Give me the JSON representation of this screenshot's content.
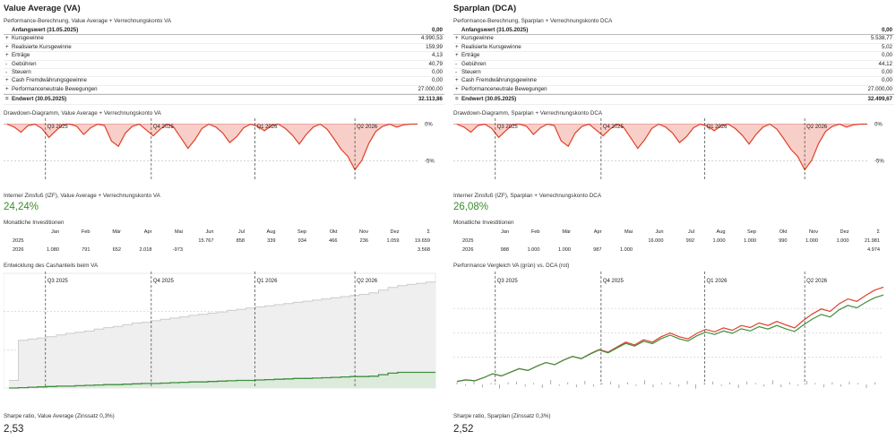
{
  "va": {
    "title": "Value Average (VA)",
    "perf_title": "Performance-Berechnung, Value Average + Verrechnungskonto VA",
    "start_label": "Anfangswert (31.05.2025)",
    "start_value": "0,00",
    "rows": [
      {
        "sign": "+",
        "label": "Kursgewinne",
        "value": "4.990,53"
      },
      {
        "sign": "+",
        "label": "Realisierte Kursgewinne",
        "value": "159,99"
      },
      {
        "sign": "+",
        "label": "Erträge",
        "value": "4,13"
      },
      {
        "sign": "-",
        "label": "Gebühren",
        "value": "40,79"
      },
      {
        "sign": "-",
        "label": "Steuern",
        "value": "0,00"
      },
      {
        "sign": "+",
        "label": "Cash Fremdwährungsgewinne",
        "value": "0,00"
      },
      {
        "sign": "+",
        "label": "Performanceneutrale Bewegungen",
        "value": "27.000,00"
      }
    ],
    "end_label": "Endwert (30.05.2025)",
    "end_value": "32.113,86",
    "drawdown_title": "Drawdown-Diagramm, Value Average + Verrechnungskonto VA",
    "irr_title": "Interner Zinsfuß (IZF), Value Average + Verrechnungskonto VA",
    "irr_value": "24,24%",
    "monthly_title": "Monatliche Investitionen",
    "months": [
      "Jan",
      "Feb",
      "Mär",
      "Apr",
      "Mai",
      "Jun",
      "Jul",
      "Aug",
      "Sep",
      "Okt",
      "Nov",
      "Dez",
      "Σ"
    ],
    "years": [
      {
        "year": "2025",
        "values": [
          "",
          "",
          "",
          "",
          "",
          "15.767",
          "858",
          "339",
          "934",
          "466",
          "236",
          "1.059",
          "19.659"
        ]
      },
      {
        "year": "2026",
        "values": [
          "1.080",
          "791",
          "652",
          "2.018",
          "-973",
          "",
          "",
          "",
          "",
          "",
          "",
          "",
          "3.568"
        ]
      }
    ],
    "chart3_title": "Entwicklung des Cashanteils beim VA",
    "sharpe_title": "Sharpe ratio, Value Average (Zinssatz 0,3%)",
    "sharpe_value": "2,53"
  },
  "dca": {
    "title": "Sparplan (DCA)",
    "perf_title": "Performance-Berechnung, Sparplan + Verrechnungskonto DCA",
    "start_label": "Anfangswert (31.05.2025)",
    "start_value": "0,00",
    "rows": [
      {
        "sign": "+",
        "label": "Kursgewinne",
        "value": "5.538,77"
      },
      {
        "sign": "+",
        "label": "Realisierte Kursgewinne",
        "value": "5,02"
      },
      {
        "sign": "+",
        "label": "Erträge",
        "value": "0,00"
      },
      {
        "sign": "-",
        "label": "Gebühren",
        "value": "44,12"
      },
      {
        "sign": "-",
        "label": "Steuern",
        "value": "0,00"
      },
      {
        "sign": "+",
        "label": "Cash Fremdwährungsgewinne",
        "value": "0,00"
      },
      {
        "sign": "+",
        "label": "Performanceneutrale Bewegungen",
        "value": "27.000,00"
      }
    ],
    "end_label": "Endwert (30.05.2025)",
    "end_value": "32.499,67",
    "drawdown_title": "Drawdown-Diagramm, Sparplan + Verrechnungskonto DCA",
    "irr_title": "Interner Zinsfuß (IZF), Sparplan + Verrechnungskonto DCA",
    "irr_value": "26,08%",
    "monthly_title": "Monatliche Investitionen",
    "months": [
      "Jan",
      "Feb",
      "Mär",
      "Apr",
      "Mai",
      "Jun",
      "Jul",
      "Aug",
      "Sep",
      "Okt",
      "Nov",
      "Dez",
      "Σ"
    ],
    "years": [
      {
        "year": "2025",
        "values": [
          "",
          "",
          "",
          "",
          "",
          "16.000",
          "992",
          "1.000",
          "1.000",
          "990",
          "1.000",
          "1.000",
          "21.981"
        ]
      },
      {
        "year": "2026",
        "values": [
          "988",
          "1.000",
          "1.000",
          "987",
          "1.000",
          "",
          "",
          "",
          "",
          "",
          "",
          "",
          "4.974"
        ]
      }
    ],
    "chart3_title": "Performance Vergleich VA (grün) vs. DCA (rot)",
    "sharpe_title": "Sharpe ratio, Sparplan (Zinssatz 0,3%)",
    "sharpe_value": "2,52"
  },
  "chart_data": [
    {
      "type": "area",
      "quarters": [
        "Q3 2025",
        "Q4 2025",
        "Q1 2026",
        "Q2 2026"
      ],
      "y_ticks": [
        "0%",
        "-5%"
      ],
      "ylim": [
        -6.5,
        0.3
      ],
      "drawdown_pct": [
        0,
        -0.4,
        -1.1,
        -0.2,
        0,
        -0.6,
        -1.8,
        -0.9,
        -0.1,
        0,
        -0.3,
        -1.4,
        -0.5,
        0,
        -0.2,
        -2.3,
        -3.0,
        -1.2,
        -0.3,
        0,
        -0.8,
        -1.6,
        -0.7,
        0,
        -0.5,
        -1.9,
        -3.3,
        -2.1,
        -0.6,
        0,
        -0.4,
        -1.2,
        -2.5,
        -1.7,
        -0.5,
        0,
        -0.3,
        -0.9,
        -0.2,
        0,
        -0.6,
        -1.5,
        -2.7,
        -1.4,
        -0.4,
        0,
        -0.7,
        -2.0,
        -3.4,
        -4.4,
        -6.2,
        -4.9,
        -2.6,
        -1.0,
        -0.3,
        0,
        -0.4,
        -0.1,
        0,
        0
      ],
      "colors": {
        "line": "#e0402a",
        "fill": "#f8cfc8"
      }
    },
    {
      "type": "area",
      "quarters": [
        "Q3 2025",
        "Q4 2025",
        "Q1 2026",
        "Q2 2026"
      ],
      "series": [
        {
          "name": "",
          "values": [
            2.0,
            12.5,
            12.8,
            13.1,
            13.4,
            13.9,
            14.3,
            14.6,
            14.9,
            15.4,
            15.8,
            16.1,
            16.6,
            17.0,
            17.2,
            17.6,
            18.0,
            18.3,
            18.6,
            19.0,
            19.3,
            19.6,
            19.9,
            20.3,
            20.6,
            20.9,
            21.2,
            21.5,
            21.8,
            22.1,
            22.4,
            22.7,
            23.0,
            23.3,
            23.6,
            23.9,
            24.2,
            24.5,
            24.9,
            25.6,
            26.3,
            26.8,
            27.1,
            27.4,
            27.7,
            27.9
          ]
        },
        {
          "name": "",
          "values": [
            0.0,
            0.1,
            0.2,
            0.3,
            0.4,
            0.5,
            0.5,
            0.6,
            0.7,
            0.8,
            0.9,
            0.9,
            1.0,
            1.1,
            1.2,
            1.2,
            1.3,
            1.4,
            1.5,
            1.6,
            1.6,
            1.7,
            1.8,
            1.9,
            2.0,
            2.0,
            2.1,
            2.2,
            2.3,
            2.4,
            2.5,
            2.5,
            2.6,
            2.7,
            2.8,
            2.9,
            3.0,
            3.0,
            3.1,
            3.5,
            3.9,
            4.1,
            4.1,
            4.1,
            4.1,
            4.1
          ]
        }
      ],
      "ylim": [
        0,
        30
      ],
      "colors": {
        "series1_line": "#cccccc",
        "series1_fill": "#efefef",
        "series2_line": "#3f8f3f",
        "series2_fill": "#dcebdc"
      }
    },
    {
      "type": "line",
      "quarters": [
        "Q3 2025",
        "Q4 2025",
        "Q1 2026",
        "Q2 2026"
      ],
      "series": [
        {
          "name": "VA",
          "values": [
            0,
            0.5,
            0.2,
            1.2,
            2.5,
            1.8,
            3.0,
            4.2,
            3.6,
            5.0,
            6.2,
            5.5,
            7.0,
            8.2,
            7.5,
            9.0,
            10.3,
            9.4,
            11.0,
            12.5,
            11.6,
            13.2,
            12.4,
            14.1,
            15.2,
            14.0,
            13.3,
            15.0,
            16.2,
            15.4,
            16.6,
            15.8,
            17.3,
            16.6,
            18.0,
            17.2,
            18.4,
            17.3,
            16.4,
            18.6,
            20.5,
            22.0,
            21.2,
            23.5,
            25.0,
            24.2,
            26.0,
            27.5,
            28.4
          ]
        },
        {
          "name": "DCA",
          "values": [
            0,
            0.5,
            0.2,
            1.2,
            2.5,
            1.8,
            3.0,
            4.2,
            3.6,
            5.0,
            6.2,
            5.5,
            7.0,
            8.2,
            7.5,
            9.1,
            10.5,
            9.6,
            11.3,
            12.9,
            12.0,
            13.7,
            12.9,
            14.7,
            15.9,
            14.7,
            14.0,
            15.8,
            17.1,
            16.3,
            17.6,
            16.8,
            18.4,
            17.7,
            19.2,
            18.4,
            19.7,
            18.6,
            17.6,
            20.1,
            22.2,
            23.8,
            23.0,
            25.5,
            27.1,
            26.3,
            28.3,
            30.0,
            31.0
          ]
        }
      ],
      "ylim": [
        -1,
        32
      ],
      "colors": {
        "VA": "#3f8f3f",
        "DCA": "#e0402a"
      }
    }
  ]
}
